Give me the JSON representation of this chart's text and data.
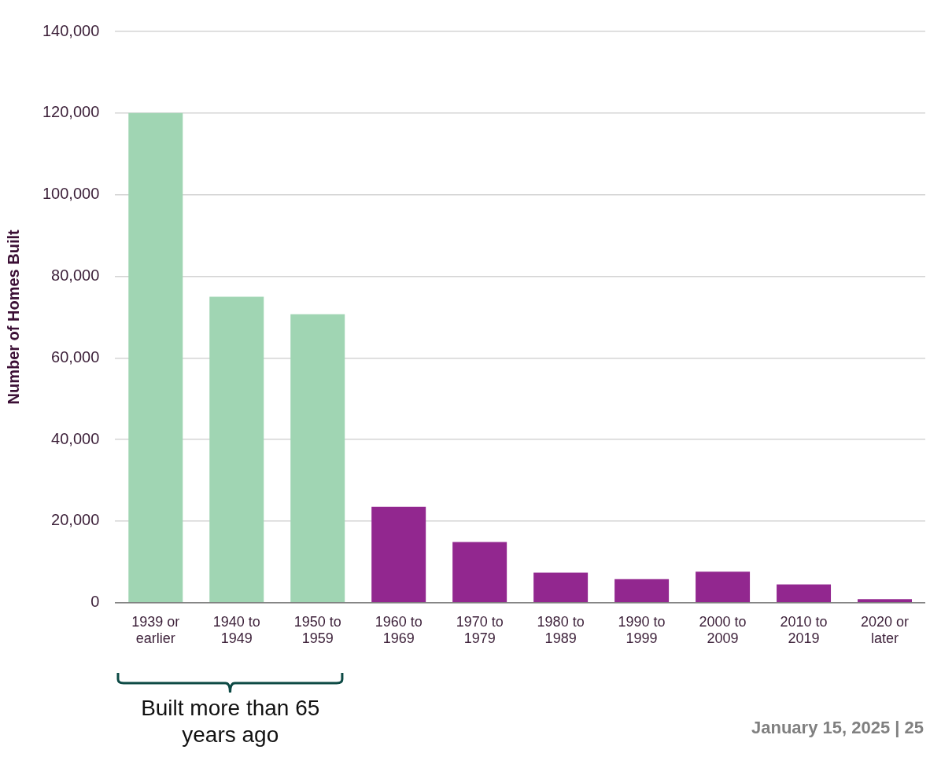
{
  "chart_data": {
    "type": "bar",
    "ylabel": "Number of Homes Built",
    "categories": [
      "1939 or earlier",
      "1940 to 1949",
      "1950 to 1959",
      "1960 to 1969",
      "1970 to 1979",
      "1980 to 1989",
      "1990 to 1999",
      "2000 to 2009",
      "2010 to 2019",
      "2020 or later"
    ],
    "values": [
      120000,
      75000,
      70700,
      23500,
      14900,
      7400,
      5800,
      7600,
      4500,
      900
    ],
    "colors": [
      "#a0d5b3",
      "#a0d5b3",
      "#a0d5b3",
      "#92278f",
      "#92278f",
      "#92278f",
      "#92278f",
      "#92278f",
      "#92278f",
      "#92278f"
    ],
    "ylim": [
      0,
      140000
    ],
    "yticks": [
      0,
      {
        "value": 20000,
        "label": "20,000"
      },
      {
        "value": 40000,
        "label": "40,000"
      },
      {
        "value": 60000,
        "label": "60,000"
      },
      {
        "value": 80000,
        "label": "80,000"
      },
      {
        "value": 100000,
        "label": "100,000"
      },
      {
        "value": 120000,
        "label": "120,000"
      },
      {
        "value": 140000,
        "label": "140,000"
      }
    ],
    "grid": "y",
    "legend": false,
    "annotations": [
      "Built more than 65 years ago",
      "January 15, 2025 | 25"
    ]
  }
}
